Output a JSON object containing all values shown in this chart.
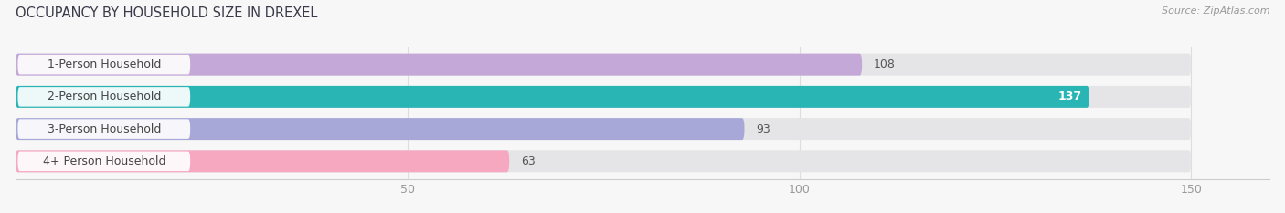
{
  "title": "OCCUPANCY BY HOUSEHOLD SIZE IN DREXEL",
  "source": "Source: ZipAtlas.com",
  "categories": [
    "1-Person Household",
    "2-Person Household",
    "3-Person Household",
    "4+ Person Household"
  ],
  "values": [
    108,
    137,
    93,
    63
  ],
  "bar_colors": [
    "#c4a8d8",
    "#2ab5b5",
    "#a8a8d8",
    "#f5a8c0"
  ],
  "label_colors": [
    "#444444",
    "#ffffff",
    "#444444",
    "#444444"
  ],
  "xlim": [
    0,
    160
  ],
  "data_max": 150,
  "xticks": [
    50,
    100,
    150
  ],
  "bar_height": 0.68,
  "background_color": "#f7f7f7",
  "bar_bg_color": "#e5e5e8",
  "title_fontsize": 10.5,
  "label_fontsize": 9,
  "tick_fontsize": 9,
  "source_fontsize": 8,
  "title_color": "#3a3a4a",
  "tick_color": "#999999",
  "value_label_dark": "#555555",
  "pill_bg": "#ffffff",
  "pill_text": "#444444"
}
